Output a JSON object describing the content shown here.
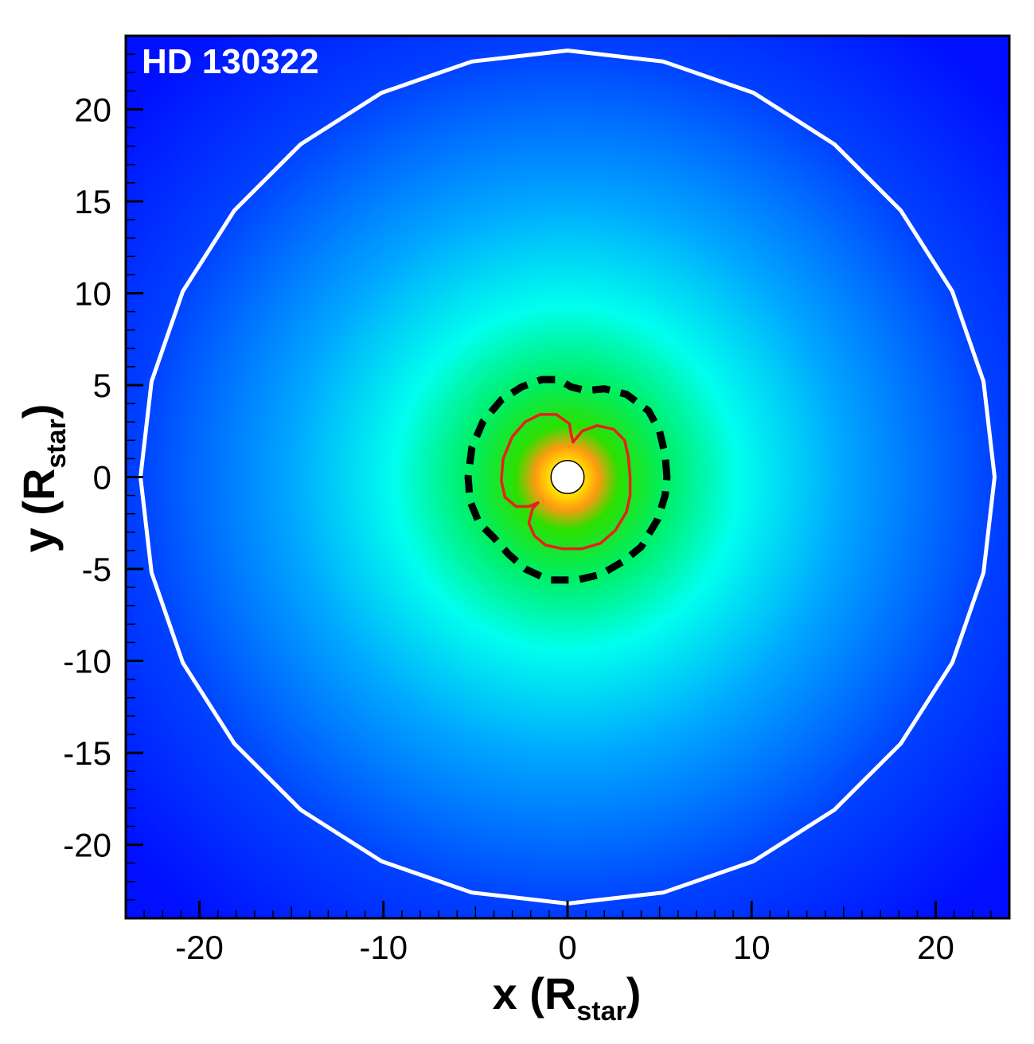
{
  "chart_data": {
    "type": "heatmap",
    "title": "",
    "annotation": "HD 130322",
    "xlabel": {
      "main": "x (R",
      "subscript": "star",
      "close": ")"
    },
    "ylabel": {
      "main": "y (R",
      "subscript": "star",
      "close": ")"
    },
    "xlim": [
      -24,
      24
    ],
    "ylim": [
      -24,
      24
    ],
    "xticks": [
      -20,
      -10,
      0,
      10,
      20
    ],
    "yticks": [
      -20,
      -15,
      -10,
      -5,
      0,
      5,
      10,
      15,
      20
    ],
    "xtick_labels": [
      "-20",
      "-10",
      "0",
      "10",
      "20"
    ],
    "ytick_labels": [
      "-20",
      "-15",
      "-10",
      "-5",
      "0",
      "5",
      "10",
      "15",
      "20"
    ],
    "grid": false,
    "colormap": {
      "stops": [
        "#ffffff",
        "#ffd400",
        "#ff8a00",
        "#00e000",
        "#00ffff",
        "#0090ff",
        "#0010ff"
      ],
      "background": "#0010ff"
    },
    "star": {
      "center": [
        0,
        0
      ],
      "radius": 0.9,
      "fill": "#ffffff",
      "stroke": "#000000"
    },
    "contours": [
      {
        "label": "outer boundary",
        "style": "solid",
        "color": "#ffffff",
        "points": [
          [
            23.2,
            0
          ],
          [
            22.6,
            5.2
          ],
          [
            20.9,
            10.1
          ],
          [
            18.1,
            14.5
          ],
          [
            14.5,
            18.1
          ],
          [
            10.1,
            20.9
          ],
          [
            5.2,
            22.6
          ],
          [
            0,
            23.2
          ],
          [
            -5.2,
            22.6
          ],
          [
            -10.1,
            20.9
          ],
          [
            -14.5,
            18.1
          ],
          [
            -18.1,
            14.5
          ],
          [
            -20.9,
            10.1
          ],
          [
            -22.6,
            5.2
          ],
          [
            -23.2,
            0
          ],
          [
            -22.6,
            -5.2
          ],
          [
            -20.9,
            -10.1
          ],
          [
            -18.1,
            -14.5
          ],
          [
            -14.5,
            -18.1
          ],
          [
            -10.1,
            -20.9
          ],
          [
            -5.2,
            -22.6
          ],
          [
            0,
            -23.2
          ],
          [
            5.2,
            -22.6
          ],
          [
            10.1,
            -20.9
          ],
          [
            14.5,
            -18.1
          ],
          [
            18.1,
            -14.5
          ],
          [
            20.9,
            -10.1
          ],
          [
            22.6,
            -5.2
          ],
          [
            23.2,
            0
          ]
        ]
      },
      {
        "label": "dashed surface",
        "style": "dashed",
        "color": "#000000",
        "points": [
          [
            5.4,
            0
          ],
          [
            5.3,
            1.2
          ],
          [
            5.0,
            2.5
          ],
          [
            4.4,
            3.6
          ],
          [
            3.2,
            4.5
          ],
          [
            2.0,
            4.8
          ],
          [
            1.0,
            4.7
          ],
          [
            0.2,
            4.9
          ],
          [
            -0.5,
            5.3
          ],
          [
            -1.4,
            5.3
          ],
          [
            -2.5,
            4.9
          ],
          [
            -3.6,
            4.2
          ],
          [
            -4.6,
            3.0
          ],
          [
            -5.2,
            1.6
          ],
          [
            -5.4,
            0
          ],
          [
            -5.3,
            -1.3
          ],
          [
            -4.8,
            -2.5
          ],
          [
            -4.0,
            -3.3
          ],
          [
            -3.2,
            -4.2
          ],
          [
            -2.3,
            -5.0
          ],
          [
            -1.0,
            -5.6
          ],
          [
            0.5,
            -5.6
          ],
          [
            1.8,
            -5.3
          ],
          [
            3.0,
            -4.6
          ],
          [
            4.0,
            -3.8
          ],
          [
            4.9,
            -2.3
          ],
          [
            5.3,
            -1.0
          ],
          [
            5.4,
            0
          ]
        ]
      },
      {
        "label": "red contour",
        "style": "solid",
        "color": "#e8201a",
        "points": [
          [
            3.4,
            0
          ],
          [
            3.3,
            1.1
          ],
          [
            3.1,
            2.0
          ],
          [
            2.5,
            2.6
          ],
          [
            1.6,
            2.8
          ],
          [
            0.8,
            2.5
          ],
          [
            0.3,
            1.9
          ],
          [
            0.2,
            2.3
          ],
          [
            0.1,
            2.9
          ],
          [
            -0.6,
            3.4
          ],
          [
            -1.5,
            3.4
          ],
          [
            -2.3,
            3.0
          ],
          [
            -3.0,
            2.2
          ],
          [
            -3.5,
            1.0
          ],
          [
            -3.6,
            -0.2
          ],
          [
            -3.4,
            -1.1
          ],
          [
            -2.8,
            -1.6
          ],
          [
            -2.1,
            -1.6
          ],
          [
            -1.6,
            -1.4
          ],
          [
            -1.9,
            -1.7
          ],
          [
            -2.1,
            -2.5
          ],
          [
            -1.8,
            -3.2
          ],
          [
            -1.2,
            -3.7
          ],
          [
            -0.3,
            -3.9
          ],
          [
            0.8,
            -3.9
          ],
          [
            1.8,
            -3.6
          ],
          [
            2.6,
            -2.9
          ],
          [
            3.2,
            -1.9
          ],
          [
            3.4,
            -1.0
          ],
          [
            3.4,
            0
          ]
        ]
      }
    ]
  }
}
